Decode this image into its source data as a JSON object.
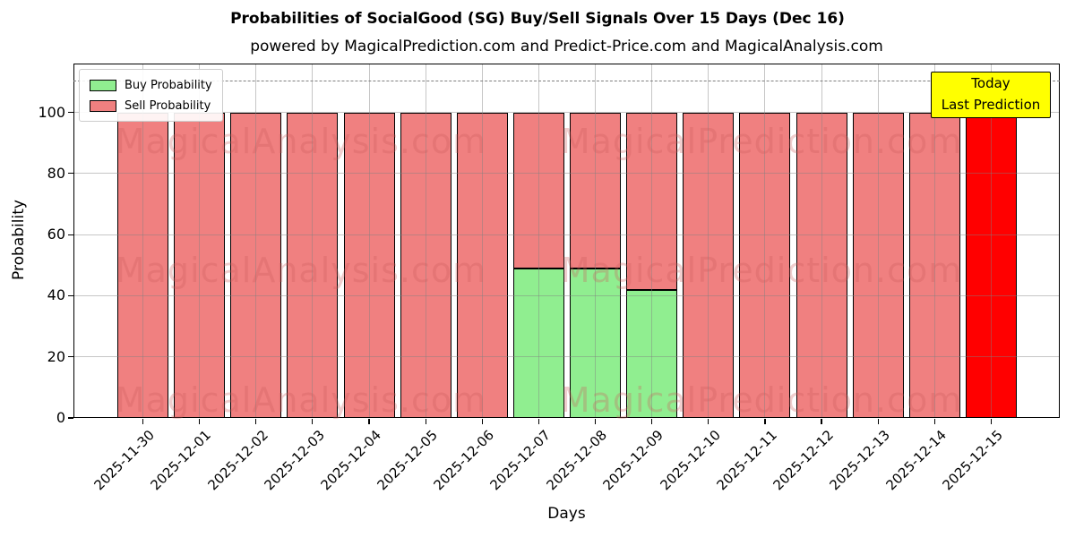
{
  "figure": {
    "title": "Probabilities of SocialGood (SG) Buy/Sell Signals Over 15 Days (Dec 16)",
    "subtitle": "powered by MagicalPrediction.com and Predict-Price.com and MagicalAnalysis.com",
    "xlabel": "Days",
    "ylabel": "Probability"
  },
  "legend": {
    "position": "upper left",
    "items": [
      {
        "label": "Buy Probability",
        "color": "#90ee90"
      },
      {
        "label": "Sell Probability",
        "color": "#f08080"
      }
    ]
  },
  "annotation": {
    "line1": "Today",
    "line2": "Last Prediction",
    "bg": "#ffff00",
    "border": "#000000"
  },
  "watermarks": {
    "left_text": "MagicalAnalysis.com",
    "right_text": "MagicalPrediction.com"
  },
  "chart_data": {
    "type": "bar",
    "stacked": true,
    "title": "Probabilities of SocialGood (SG) Buy/Sell Signals Over 15 Days (Dec 16)",
    "xlabel": "Days",
    "ylabel": "Probability",
    "categories": [
      "2025-11-30",
      "2025-12-01",
      "2025-12-02",
      "2025-12-03",
      "2025-12-04",
      "2025-12-05",
      "2025-12-06",
      "2025-12-07",
      "2025-12-08",
      "2025-12-09",
      "2025-12-10",
      "2025-12-11",
      "2025-12-12",
      "2025-12-13",
      "2025-12-14",
      "2025-12-15"
    ],
    "series": [
      {
        "name": "Buy Probability",
        "color": "#90ee90",
        "values": [
          0,
          0,
          0,
          0,
          0,
          0,
          0,
          49,
          49,
          42,
          0,
          0,
          0,
          0,
          0,
          0
        ]
      },
      {
        "name": "Sell Probability",
        "color": "#f08080",
        "values": [
          100,
          100,
          100,
          100,
          100,
          100,
          100,
          51,
          51,
          58,
          100,
          100,
          100,
          100,
          100,
          100
        ]
      }
    ],
    "highlight": {
      "index": 15,
      "color": "#ff0000",
      "meaning": "Today / Last Prediction"
    },
    "yticks": [
      0,
      20,
      40,
      60,
      80,
      100
    ],
    "ylim": [
      0,
      116
    ],
    "dashed_line_y": 110,
    "grid": true,
    "legend_position": "upper left"
  }
}
